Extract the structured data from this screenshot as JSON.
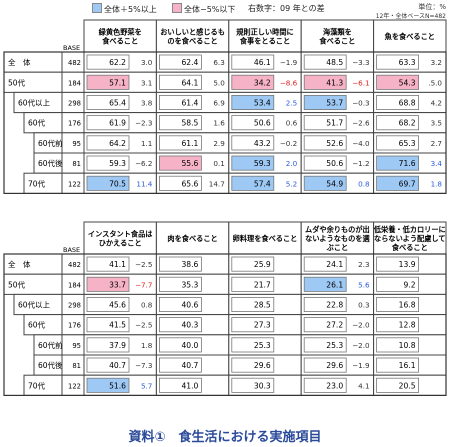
{
  "legend": {
    "positive_label": "全体＋5%以上",
    "negative_label": "全体−5%以下",
    "diff_note": "右数字：09 年との差",
    "positive_color": "#9ec9f5",
    "negative_color": "#f6b2c6",
    "positive_diff_color": "#2a5bd6",
    "negative_diff_color": "#e02020"
  },
  "header": {
    "unit": "単位：%",
    "base_note": "12年・全体ベースN=482"
  },
  "caption": "資料①　食生活における実施項目",
  "chart_data": {
    "type": "table",
    "base_label": "BASE",
    "rows": [
      {
        "label": "全　体",
        "base": 482,
        "level": 0
      },
      {
        "label": "50代",
        "base": 184,
        "level": 0
      },
      {
        "label": "60代以上",
        "base": 298,
        "level": 1
      },
      {
        "label": "60代",
        "base": 176,
        "level": 2
      },
      {
        "label": "60代前半",
        "base": 95,
        "level": 3
      },
      {
        "label": "60代後半",
        "base": 81,
        "level": 3
      },
      {
        "label": "70代",
        "base": 122,
        "level": 2
      }
    ],
    "panels": [
      {
        "columns": [
          {
            "label": "緑黄色野菜を\n食べること",
            "values": [
              62.2,
              57.1,
              65.4,
              61.9,
              64.2,
              59.3,
              70.5
            ],
            "diffs": [
              "3.0",
              "3.1",
              "3.8",
              "−2.3",
              "1.1",
              "−6.2",
              "11.4"
            ],
            "highlight": [
              null,
              "neg",
              null,
              null,
              null,
              null,
              "pos"
            ]
          },
          {
            "label": "おいしいと感じるも\nのを食べること",
            "values": [
              62.4,
              64.1,
              61.4,
              58.5,
              61.1,
              55.6,
              65.6
            ],
            "diffs": [
              "6.3",
              "5.0",
              "6.9",
              "1.6",
              "2.9",
              "0.1",
              "14.7"
            ],
            "highlight": [
              null,
              null,
              null,
              null,
              null,
              "neg",
              null
            ]
          },
          {
            "label": "規則正しい時間に\n食事をとること",
            "values": [
              46.1,
              34.2,
              53.4,
              50.6,
              43.2,
              59.3,
              57.4
            ],
            "diffs": [
              "−1.9",
              "−8.6",
              "2.5",
              "0.6",
              "−0.2",
              "2.0",
              "5.2"
            ],
            "highlight": [
              null,
              "neg",
              "pos",
              null,
              null,
              "pos",
              "pos"
            ]
          },
          {
            "label": "海藻類を\n食べること",
            "values": [
              48.5,
              41.3,
              53.7,
              51.7,
              52.6,
              50.6,
              54.9
            ],
            "diffs": [
              "−3.3",
              "−6.1",
              "−0.3",
              "−2.6",
              "−4.0",
              "−1.2",
              "0.8"
            ],
            "highlight": [
              null,
              "neg",
              "pos",
              null,
              null,
              null,
              "pos"
            ]
          },
          {
            "label": "魚を食べること",
            "values": [
              63.3,
              54.3,
              68.8,
              68.2,
              65.3,
              71.6,
              69.7
            ],
            "diffs": [
              "3.2",
              ".5.0",
              "4.2",
              "3.5",
              "2.7",
              "3.4",
              "1.8"
            ],
            "highlight": [
              null,
              "neg",
              null,
              null,
              null,
              "pos",
              "pos"
            ]
          }
        ]
      },
      {
        "columns": [
          {
            "label": "インスタント食品は\nひかえること",
            "values": [
              41.1,
              33.7,
              45.6,
              41.5,
              37.9,
              40.7,
              51.6
            ],
            "diffs": [
              "−2.5",
              "−7.7",
              "0.8",
              "−2.5",
              "1.8",
              "−7.3",
              "5.7"
            ],
            "highlight": [
              null,
              "neg",
              null,
              null,
              null,
              null,
              "pos"
            ]
          },
          {
            "label": "肉を食べること",
            "values": [
              38.6,
              35.3,
              40.6,
              40.3,
              40.0,
              40.7,
              41.0
            ],
            "diffs": [
              "",
              "",
              "",
              "",
              "",
              "",
              ""
            ],
            "highlight": [
              null,
              null,
              null,
              null,
              null,
              null,
              null
            ]
          },
          {
            "label": "卵料理を食べること",
            "values": [
              25.9,
              21.7,
              28.5,
              27.3,
              25.3,
              29.6,
              30.3
            ],
            "diffs": [
              "",
              "",
              "",
              "",
              "",
              "",
              ""
            ],
            "highlight": [
              null,
              null,
              null,
              null,
              null,
              null,
              null
            ]
          },
          {
            "label": "ムダや余りものが出\nないようなものを選\nぶこと",
            "values": [
              24.1,
              26.1,
              22.8,
              27.2,
              25.3,
              29.6,
              23.0
            ],
            "diffs": [
              "2.3",
              "5.6",
              "0.3",
              "−2.0",
              "−2.0",
              "−1.9",
              "4.1"
            ],
            "highlight": [
              null,
              "pos",
              null,
              null,
              null,
              null,
              null
            ]
          },
          {
            "label": "低栄養・低カロリーに\nならないよう配慮して\n食べること",
            "values": [
              13.9,
              9.2,
              16.8,
              12.8,
              10.8,
              16.1,
              20.5
            ],
            "diffs": [
              "",
              "",
              "",
              "",
              "",
              "",
              ""
            ],
            "highlight": [
              null,
              null,
              null,
              null,
              null,
              null,
              null
            ]
          }
        ]
      }
    ]
  }
}
